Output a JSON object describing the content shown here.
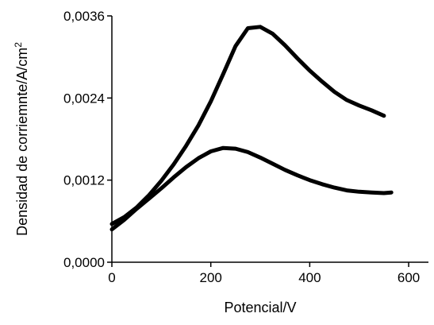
{
  "chart_data": {
    "type": "line",
    "title": "",
    "xlabel": "Potencial/V",
    "ylabel": "Densidad de corriemnte/A/cm",
    "ylabel_superscript": "2",
    "xlim": [
      0,
      640
    ],
    "ylim": [
      0,
      0.0036
    ],
    "x_ticks": [
      0,
      200,
      400,
      600
    ],
    "x_tick_labels": [
      "0",
      "200",
      "400",
      "600"
    ],
    "y_ticks": [
      0,
      0.0012,
      0.0024,
      0.0036
    ],
    "y_tick_labels": [
      "0,0000",
      "0,0012",
      "0,0024",
      "0,0036"
    ],
    "grid": false,
    "legend": "none",
    "line_color": "#000000",
    "series": [
      {
        "x": [
          0,
          25,
          50,
          75,
          100,
          125,
          150,
          175,
          200,
          225,
          250,
          275,
          300,
          325,
          350,
          375,
          400,
          425,
          450,
          475,
          500,
          525,
          550
        ],
        "y": [
          0.00056,
          0.00066,
          0.0008,
          0.00098,
          0.00119,
          0.00143,
          0.0017,
          0.002,
          0.00235,
          0.00275,
          0.00316,
          0.00342,
          0.00344,
          0.00334,
          0.00317,
          0.00298,
          0.0028,
          0.00264,
          0.00249,
          0.00237,
          0.00229,
          0.00222,
          0.00214
        ]
      },
      {
        "x": [
          0,
          25,
          50,
          75,
          100,
          125,
          150,
          175,
          200,
          225,
          250,
          275,
          300,
          325,
          350,
          375,
          400,
          425,
          450,
          475,
          500,
          525,
          550,
          565
        ],
        "y": [
          0.00048,
          0.00062,
          0.00078,
          0.00093,
          0.00108,
          0.00124,
          0.00139,
          0.00152,
          0.00162,
          0.00167,
          0.00166,
          0.00161,
          0.00153,
          0.00144,
          0.00135,
          0.00127,
          0.0012,
          0.00114,
          0.00109,
          0.00105,
          0.00103,
          0.00102,
          0.00101,
          0.00102
        ]
      }
    ]
  }
}
